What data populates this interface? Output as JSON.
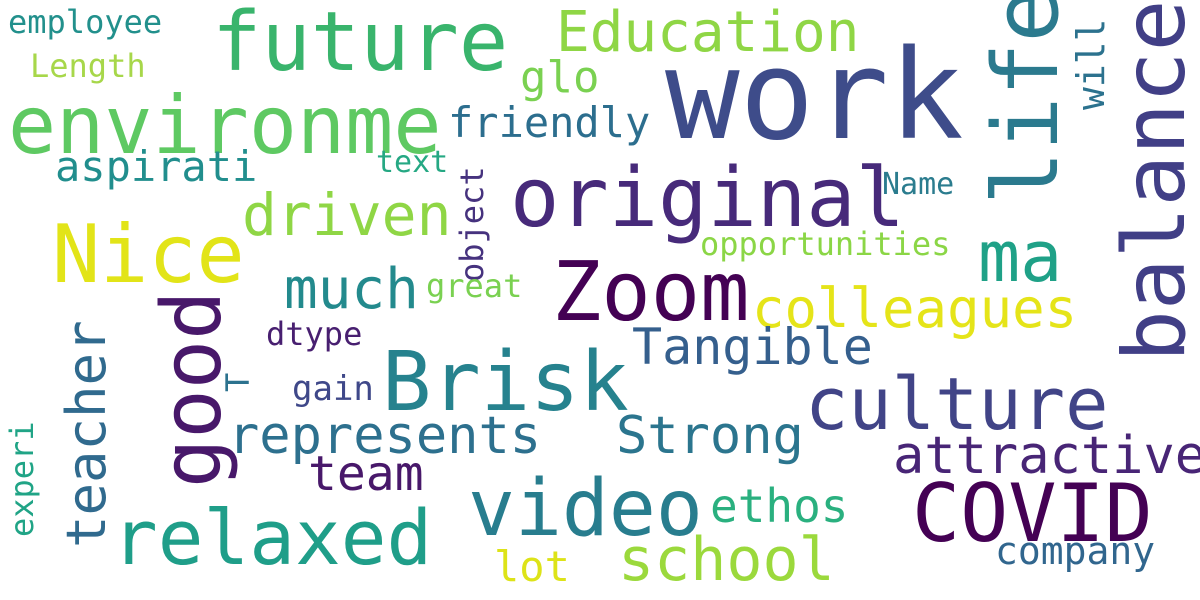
{
  "words": [
    {
      "text": "employee",
      "color": "#22908c"
    },
    {
      "text": "Length",
      "color": "#a7d74a"
    },
    {
      "text": "future",
      "color": "#39b46c"
    },
    {
      "text": "Education",
      "color": "#8fd645"
    },
    {
      "text": "work",
      "color": "#3e4c8a"
    },
    {
      "text": "life",
      "color": "#2b7a8e"
    },
    {
      "text": "will",
      "color": "#2c728e"
    },
    {
      "text": "balance",
      "color": "#413f86"
    },
    {
      "text": "environme",
      "color": "#5ec962"
    },
    {
      "text": "glo",
      "color": "#7ad151"
    },
    {
      "text": "friendly",
      "color": "#2c6e8e"
    },
    {
      "text": "aspirati",
      "color": "#218e8d"
    },
    {
      "text": "text",
      "color": "#25a883"
    },
    {
      "text": "original",
      "color": "#472a7a"
    },
    {
      "text": "object",
      "color": "#46327e"
    },
    {
      "text": "Name",
      "color": "#2b7c8e"
    },
    {
      "text": "driven",
      "color": "#8fd645"
    },
    {
      "text": "Nice",
      "color": "#e2e418"
    },
    {
      "text": "opportunities",
      "color": "#8bd646"
    },
    {
      "text": "ma",
      "color": "#1fa187"
    },
    {
      "text": "much",
      "color": "#238a8d"
    },
    {
      "text": "great",
      "color": "#7ad151"
    },
    {
      "text": "Zoom",
      "color": "#440154"
    },
    {
      "text": "colleagues",
      "color": "#e5e419"
    },
    {
      "text": "good",
      "color": "#48186a"
    },
    {
      "text": "teacher",
      "color": "#306a8e"
    },
    {
      "text": "dtype",
      "color": "#481f70"
    },
    {
      "text": "Tangible",
      "color": "#355f8d"
    },
    {
      "text": "T",
      "color": "#2c728e"
    },
    {
      "text": "Brisk",
      "color": "#26828e"
    },
    {
      "text": "gain",
      "color": "#3f4889"
    },
    {
      "text": "culture",
      "color": "#414487"
    },
    {
      "text": "represents",
      "color": "#2d708e"
    },
    {
      "text": "Strong",
      "color": "#2b758e"
    },
    {
      "text": "attractive",
      "color": "#482576"
    },
    {
      "text": "team",
      "color": "#48186a"
    },
    {
      "text": "experi",
      "color": "#20a486"
    },
    {
      "text": "relaxed",
      "color": "#1f9e89"
    },
    {
      "text": "video",
      "color": "#287d8e"
    },
    {
      "text": "ethos",
      "color": "#2ab07f"
    },
    {
      "text": "COVID",
      "color": "#440154"
    },
    {
      "text": "company",
      "color": "#31668e"
    },
    {
      "text": "school",
      "color": "#9bd93c"
    },
    {
      "text": "lot",
      "color": "#dde318"
    }
  ]
}
